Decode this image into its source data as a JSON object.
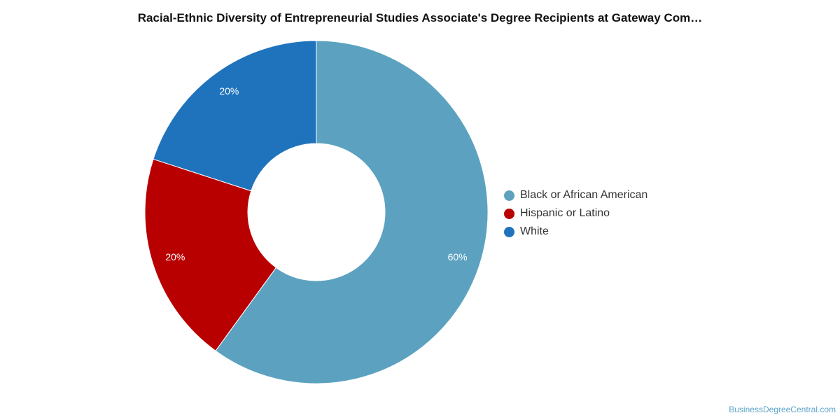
{
  "chart_data": {
    "type": "pie",
    "title": "Racial-Ethnic Diversity of Entrepreneurial Studies Associate's Degree Recipients at Gateway Com…",
    "donut": true,
    "start_angle_deg": 0,
    "direction": "clockwise",
    "legend_position": "right",
    "slices": [
      {
        "label": "Black or African American",
        "value": 60,
        "display": "60%",
        "color": "#5ca2c0"
      },
      {
        "label": "Hispanic or Latino",
        "value": 20,
        "display": "20%",
        "color": "#b80000"
      },
      {
        "label": "White",
        "value": 20,
        "display": "20%",
        "color": "#1f73bc"
      }
    ]
  },
  "watermark": "BusinessDegreeCentral.com"
}
